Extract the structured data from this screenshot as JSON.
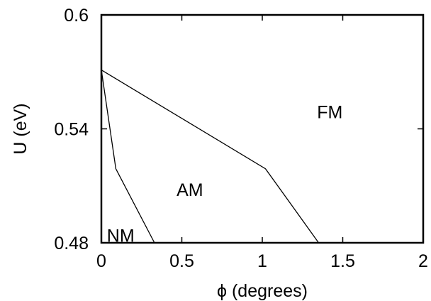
{
  "chart_data": {
    "type": "line",
    "xlabel": "ϕ (degrees)",
    "ylabel": "U (eV)",
    "xlim": [
      0,
      2
    ],
    "ylim": [
      0.48,
      0.6
    ],
    "x_ticks": [
      "0",
      "0.5",
      "1",
      "1.5",
      "2"
    ],
    "y_ticks": [
      "0.6",
      "0.54",
      "0.48"
    ],
    "grid": false,
    "series": [
      {
        "points": [
          [
            0,
            0.571
          ],
          [
            0.09,
            0.519
          ],
          [
            0.33,
            0.48
          ]
        ]
      },
      {
        "points": [
          [
            0,
            0.571
          ],
          [
            1.02,
            0.519
          ],
          [
            1.35,
            0.48
          ]
        ]
      }
    ],
    "region_labels": [
      {
        "text": "FM",
        "x": 1.42,
        "y": 0.549
      },
      {
        "text": "AM",
        "x": 0.55,
        "y": 0.508
      },
      {
        "text": "NM",
        "x": 0.12,
        "y": 0.484
      }
    ]
  }
}
